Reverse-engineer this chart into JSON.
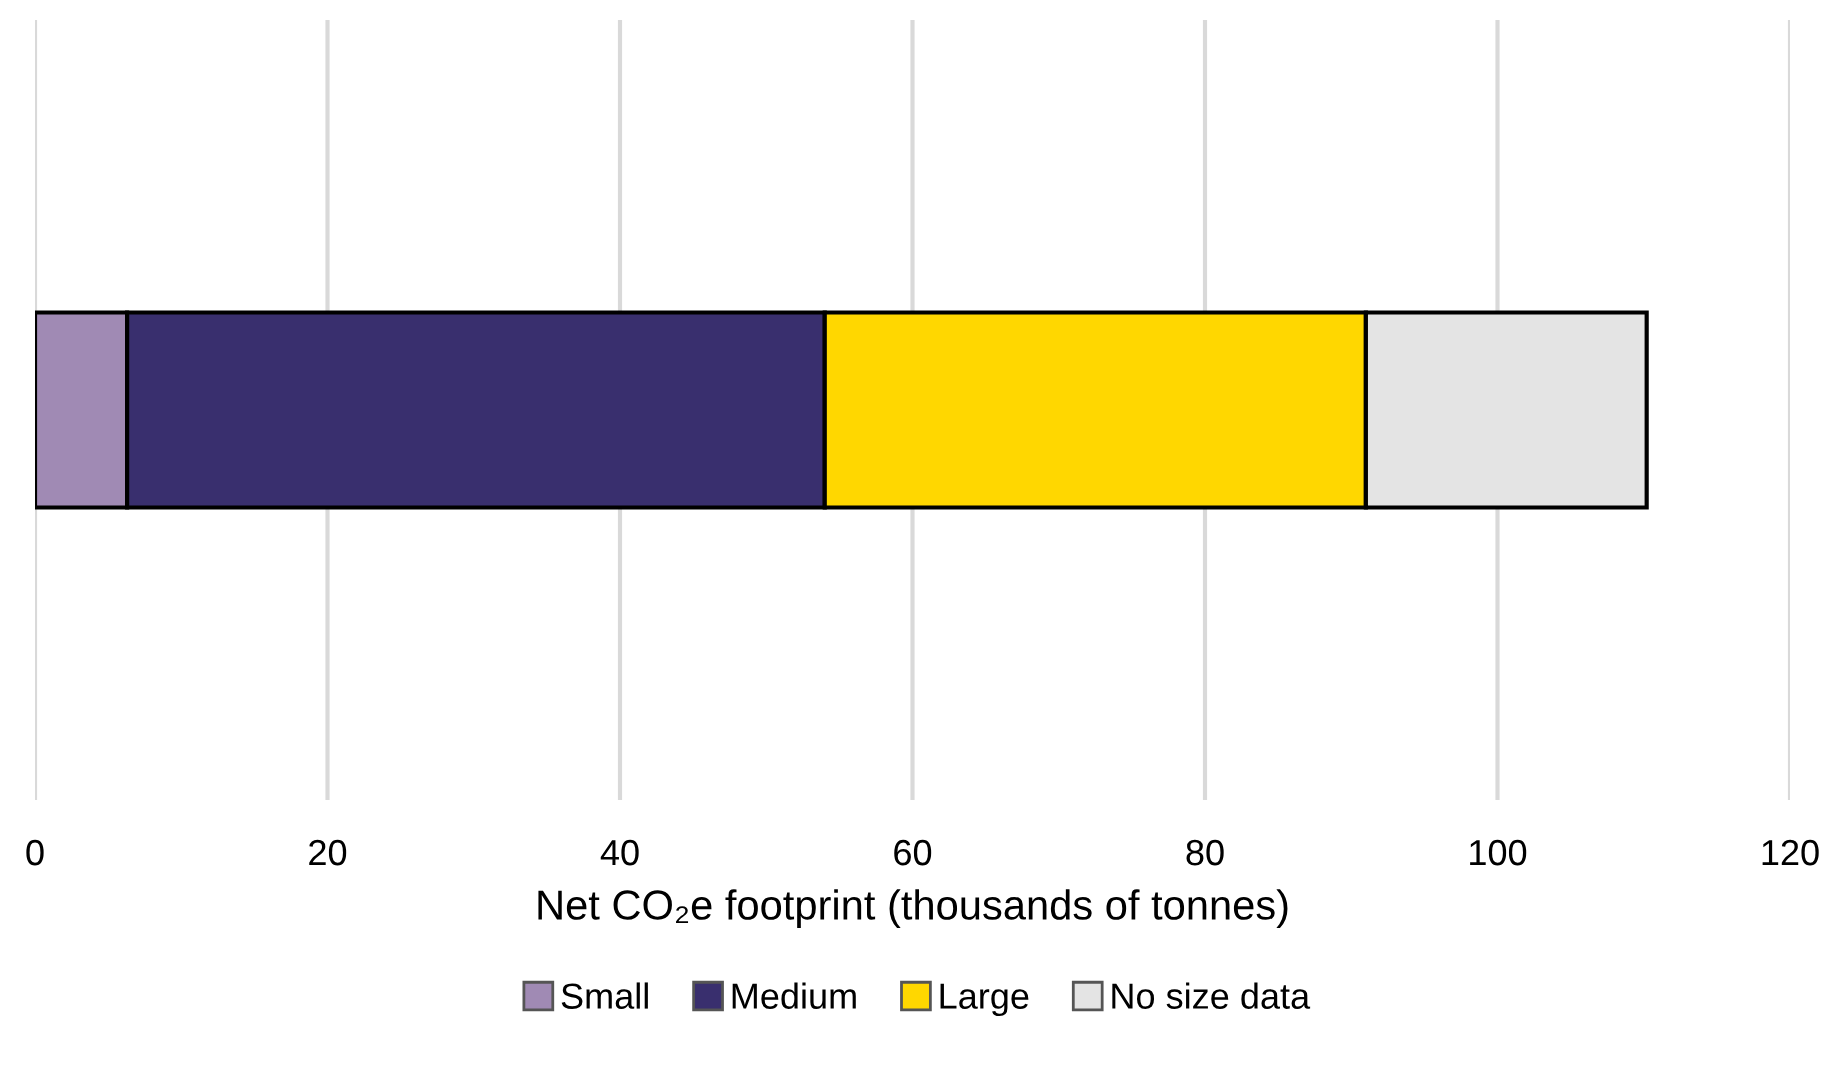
{
  "chart_data": {
    "type": "bar",
    "orientation": "horizontal",
    "stacked": true,
    "categories": [
      null
    ],
    "series": [
      {
        "name": "Small",
        "color": "#a08ab4",
        "values": [
          6.3
        ]
      },
      {
        "name": "Medium",
        "color": "#392f6e",
        "values": [
          47.7
        ]
      },
      {
        "name": "Large",
        "color": "#ffd700",
        "values": [
          37.0
        ]
      },
      {
        "name": "No size data",
        "color": "#e4e4e4",
        "values": [
          19.2
        ]
      }
    ],
    "xlabel": "Net CO₂e footprint (thousands of tonnes)",
    "xlim": [
      0,
      120
    ],
    "xticks": [
      0,
      20,
      40,
      60,
      80,
      100,
      120
    ],
    "grid": "x",
    "legend": "bottom"
  }
}
